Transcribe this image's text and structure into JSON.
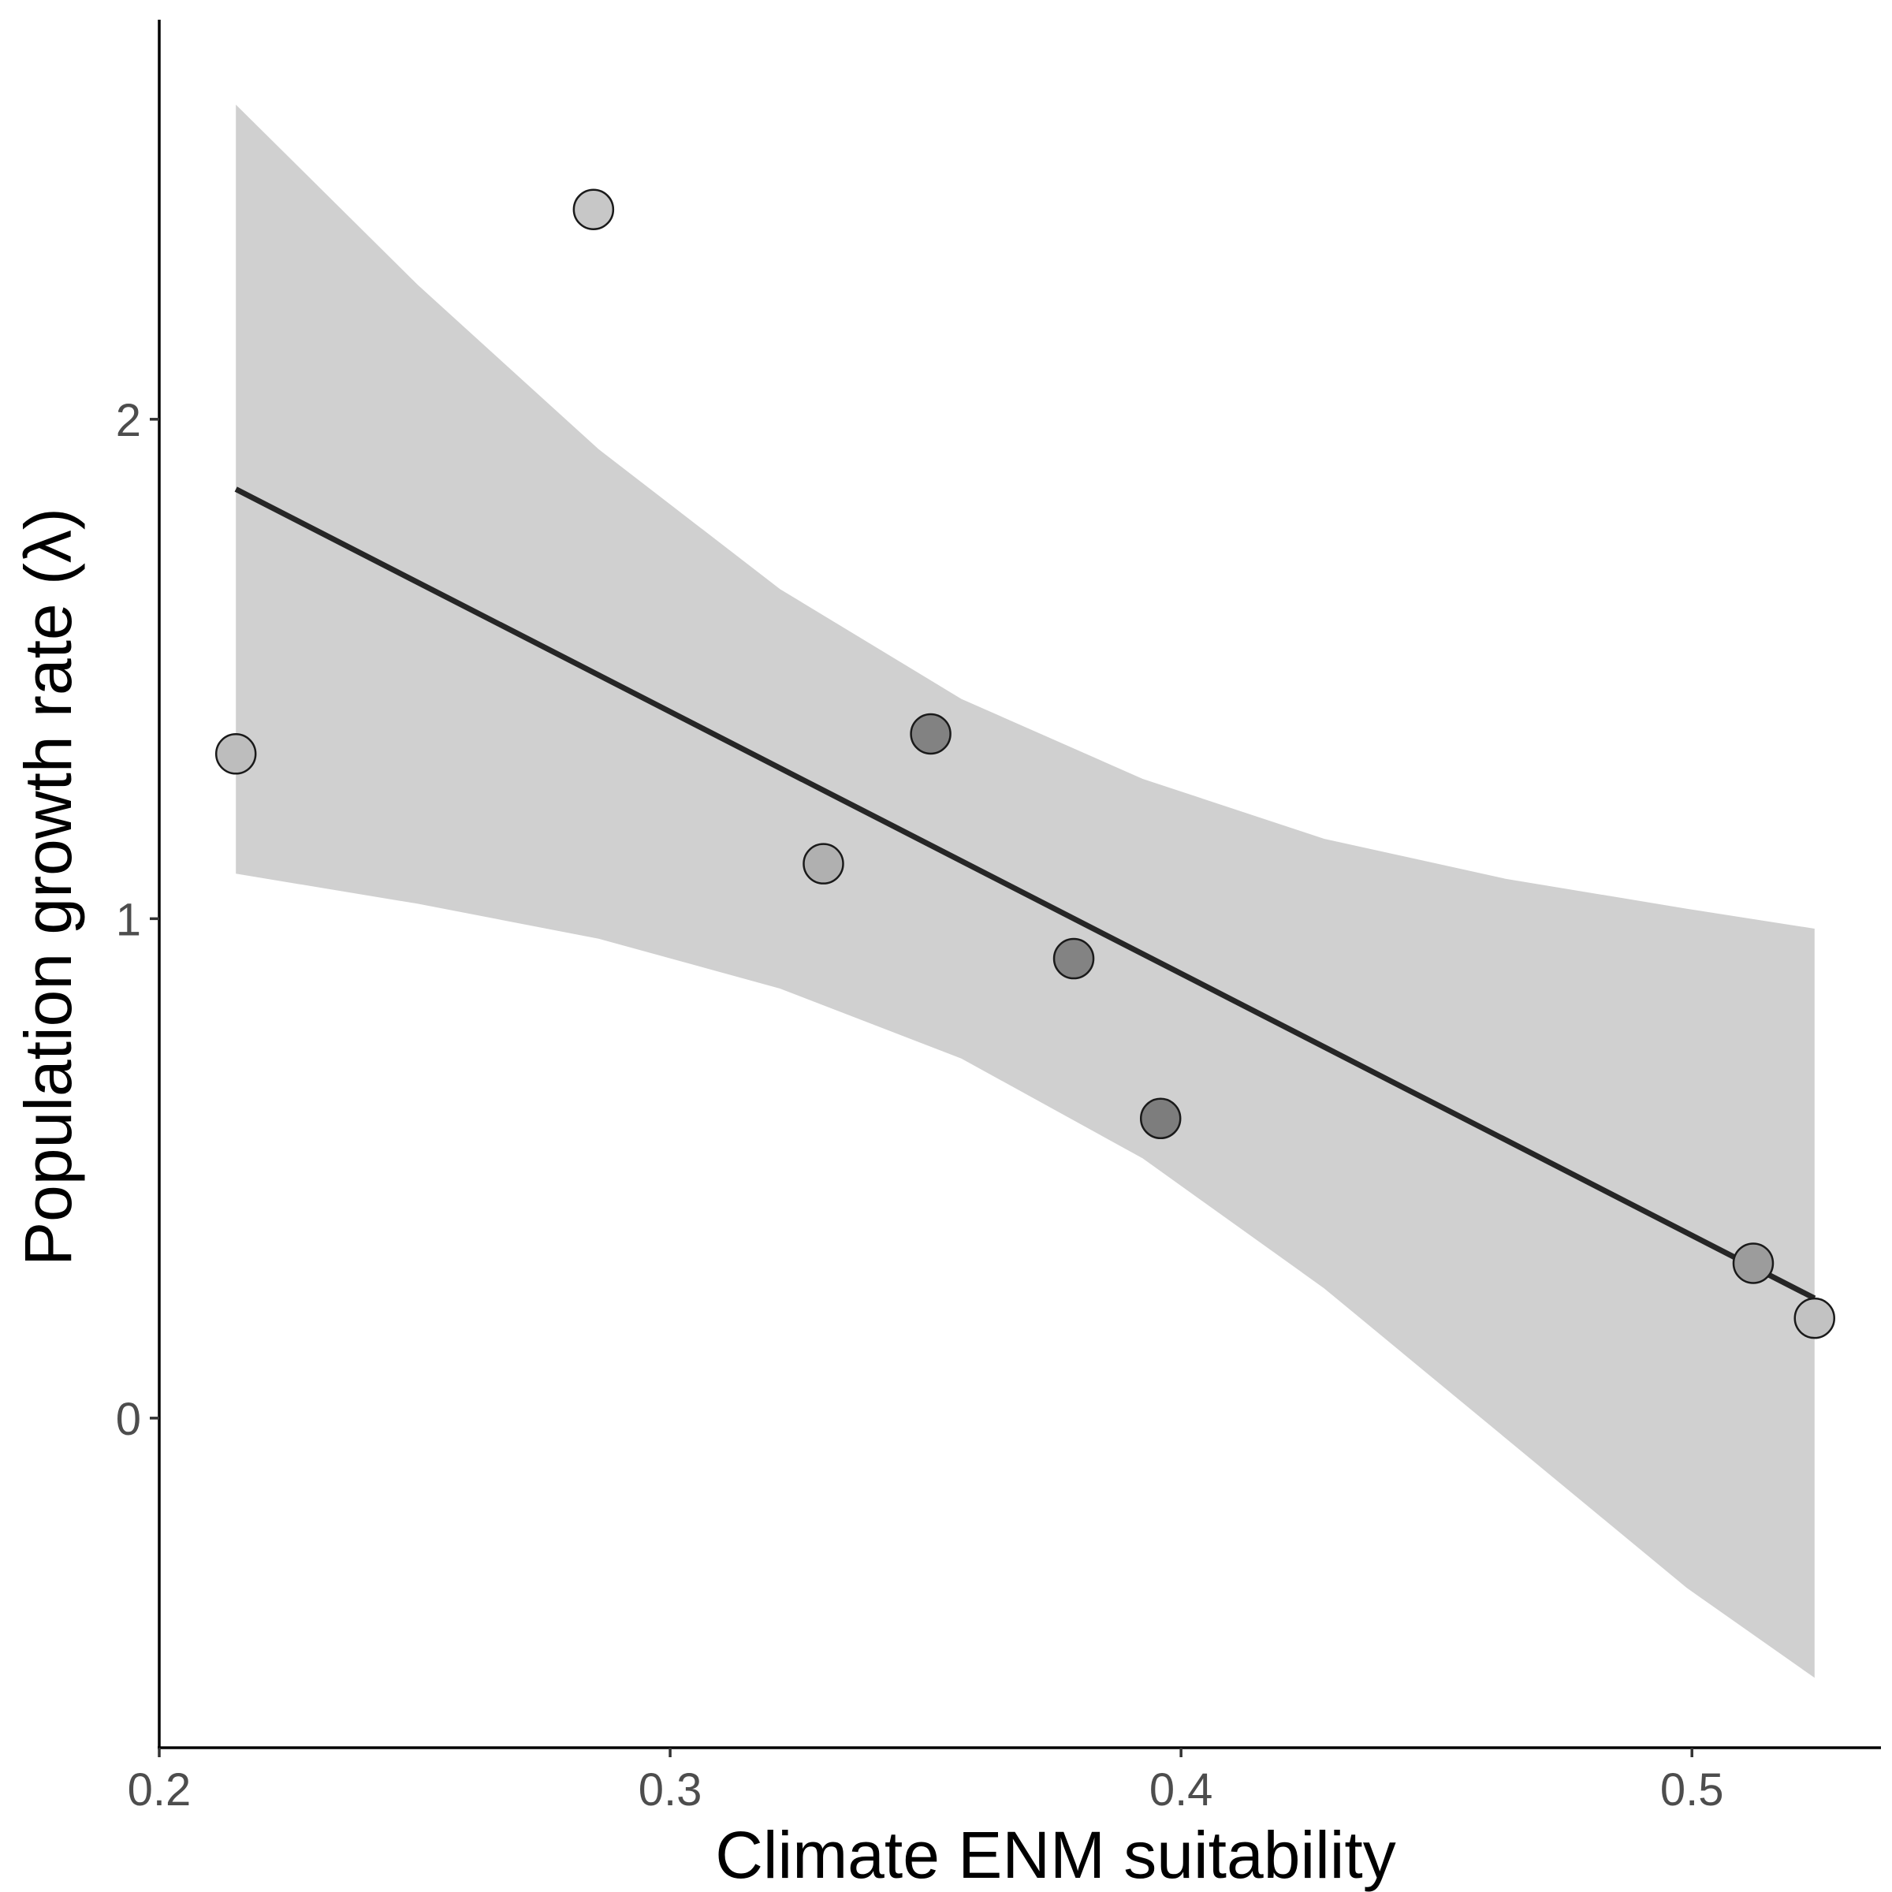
{
  "chart_data": {
    "type": "scatter",
    "title": "",
    "xlabel": "Climate ENM suitability",
    "ylabel": "Population growth rate (λ)",
    "xlim": [
      0.2,
      0.537
    ],
    "ylim": [
      -0.66,
      2.8
    ],
    "x_ticks": [
      0.2,
      0.3,
      0.4,
      0.5
    ],
    "x_tick_labels": [
      "0.2",
      "0.3",
      "0.4",
      "0.5"
    ],
    "y_ticks": [
      0,
      1,
      2
    ],
    "y_tick_labels": [
      "0",
      "1",
      "2"
    ],
    "points": [
      {
        "x": 0.215,
        "y": 1.33,
        "color": "#bdbdbd"
      },
      {
        "x": 0.285,
        "y": 2.42,
        "color": "#c7c7c7"
      },
      {
        "x": 0.33,
        "y": 1.11,
        "color": "#b0b0b0"
      },
      {
        "x": 0.351,
        "y": 1.37,
        "color": "#828282"
      },
      {
        "x": 0.379,
        "y": 0.92,
        "color": "#838383"
      },
      {
        "x": 0.396,
        "y": 0.6,
        "color": "#7d7d7d"
      },
      {
        "x": 0.512,
        "y": 0.31,
        "color": "#9c9c9c"
      },
      {
        "x": 0.524,
        "y": 0.2,
        "color": "#c2c2c2"
      }
    ],
    "fit_line": {
      "x": [
        0.215,
        0.524
      ],
      "y": [
        1.86,
        0.24
      ],
      "color": "#262626"
    },
    "confidence_band": {
      "x": [
        0.215,
        0.2505,
        0.286,
        0.3215,
        0.357,
        0.3925,
        0.428,
        0.4635,
        0.499,
        0.524
      ],
      "upper": [
        2.63,
        2.27,
        1.94,
        1.66,
        1.44,
        1.28,
        1.16,
        1.08,
        1.02,
        0.98
      ],
      "lower": [
        1.09,
        1.03,
        0.96,
        0.86,
        0.72,
        0.52,
        0.26,
        -0.04,
        -0.34,
        -0.52
      ],
      "color": "#d0d0d0"
    }
  }
}
